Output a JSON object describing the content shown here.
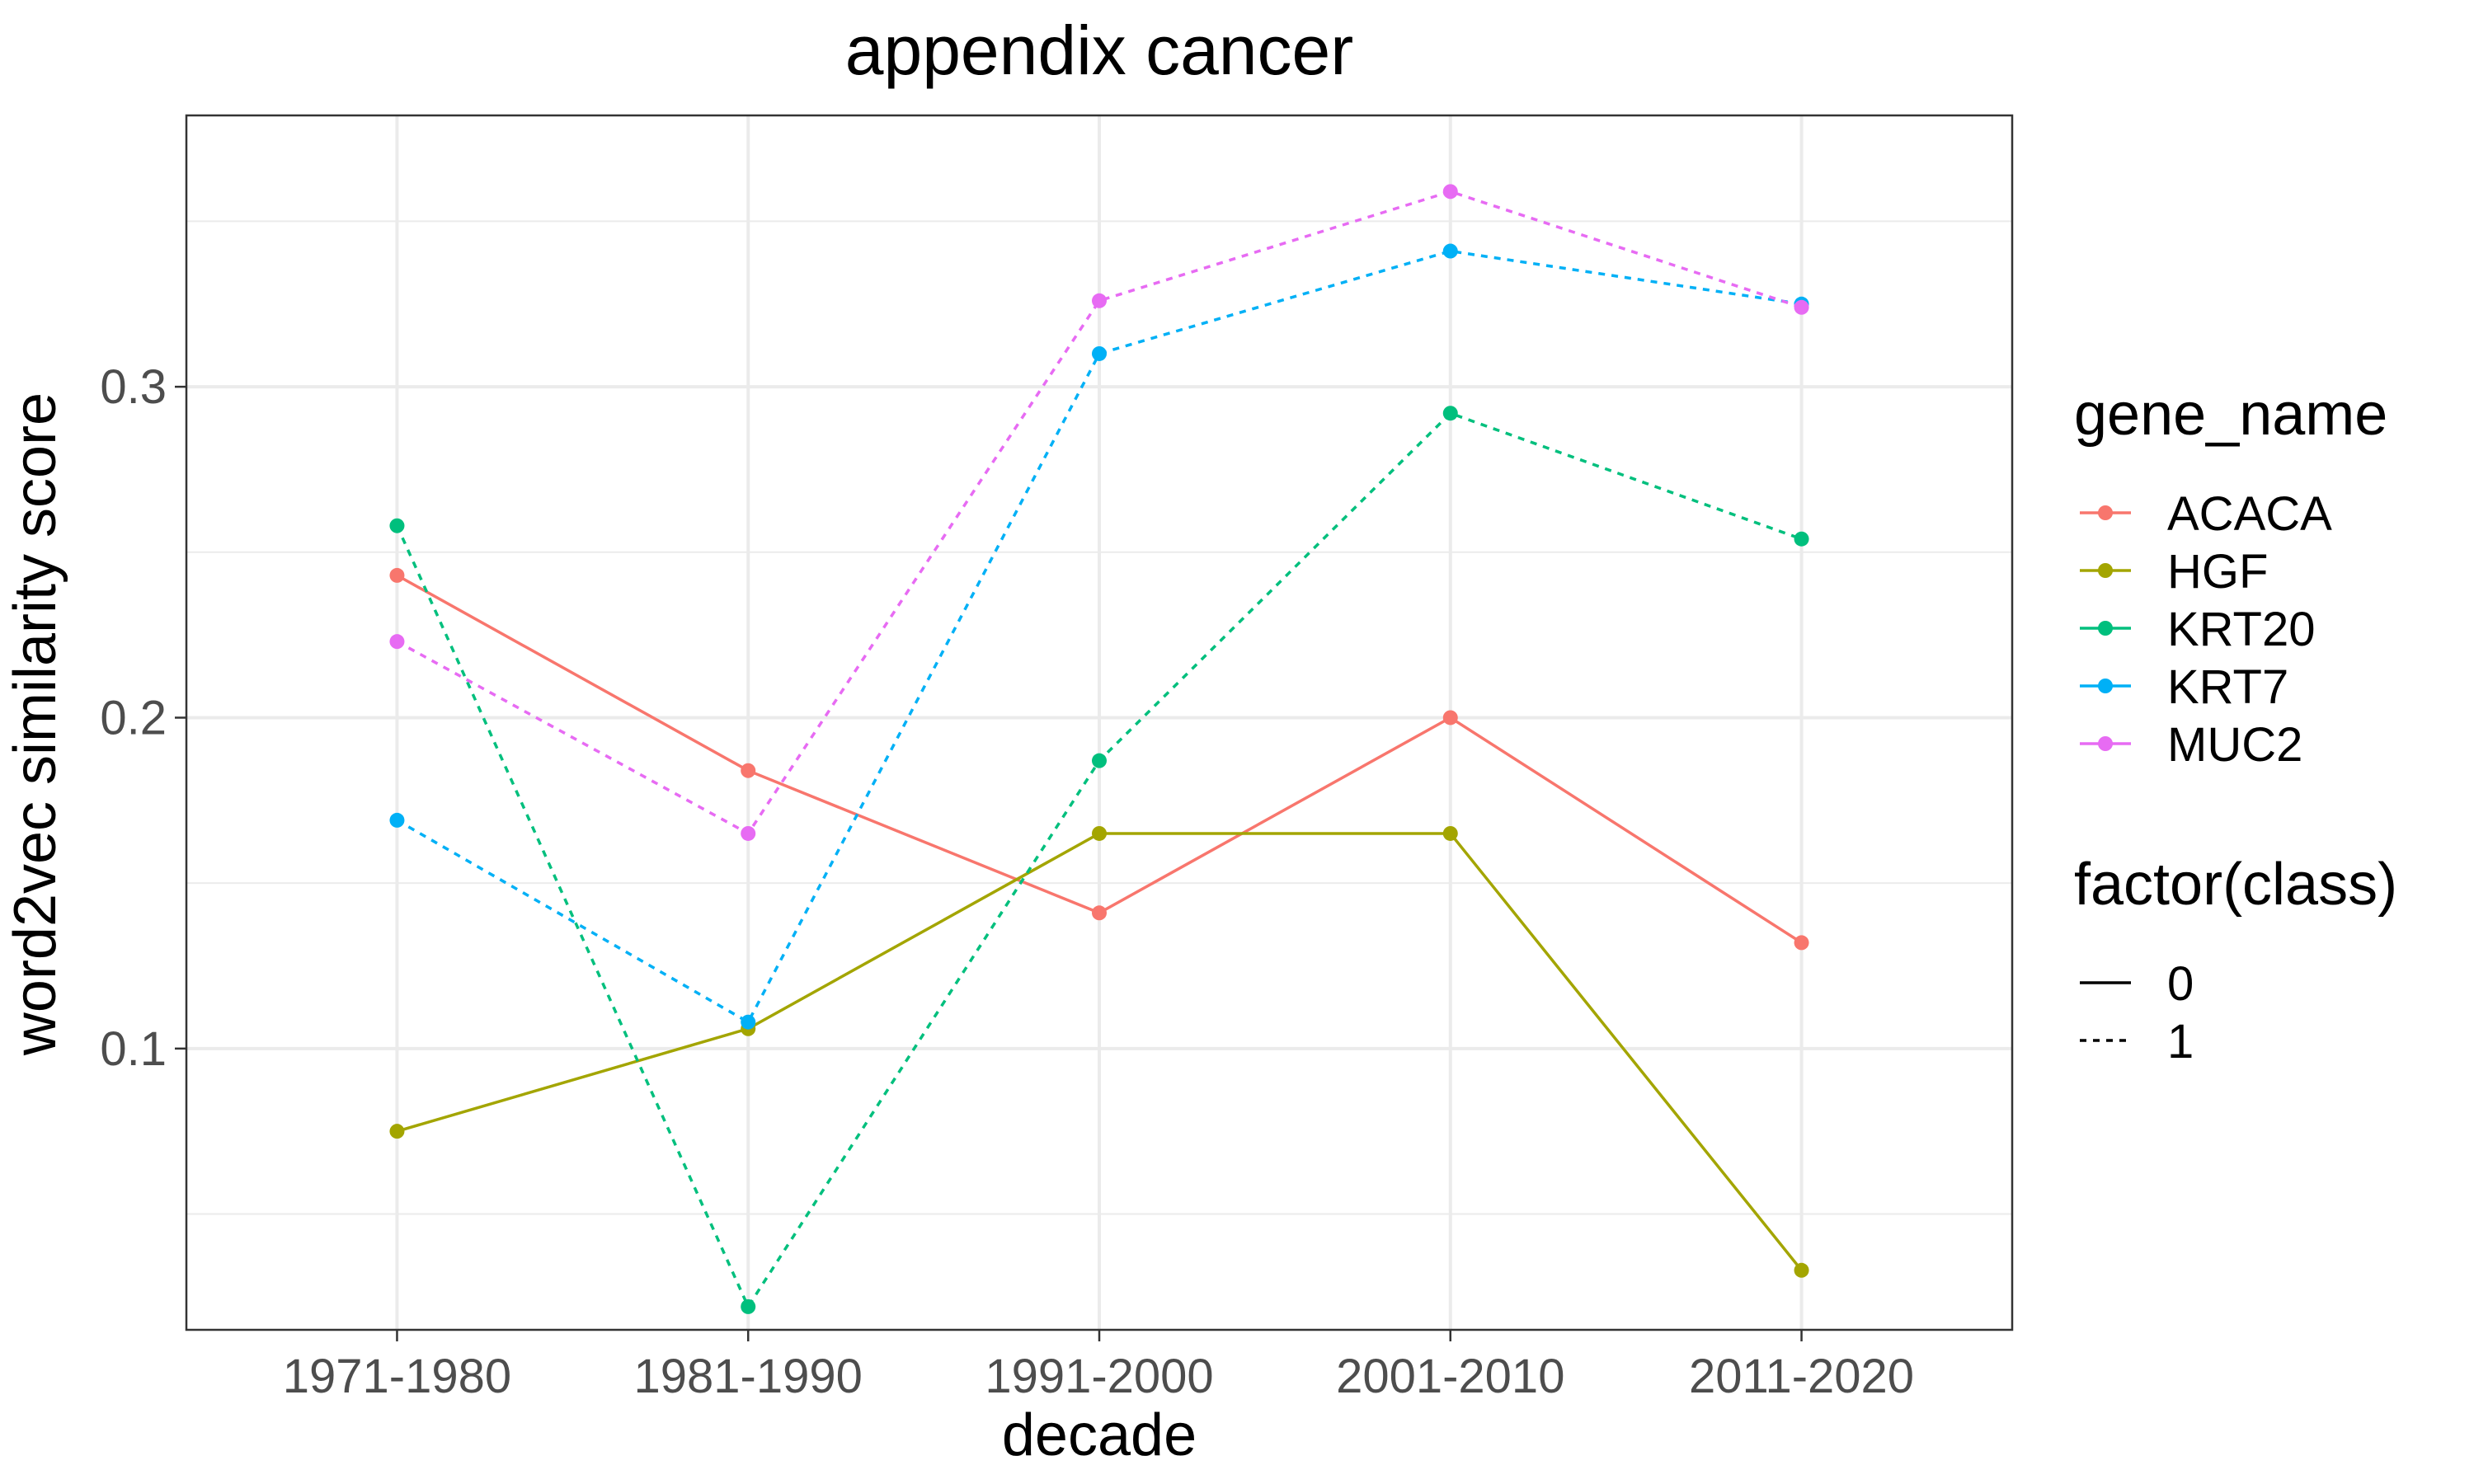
{
  "chart_data": {
    "type": "line",
    "title": "appendix cancer",
    "xlabel": "decade",
    "ylabel": "word2vec similarity score",
    "categories": [
      "1971-1980",
      "1981-1990",
      "1991-2000",
      "2001-2010",
      "2011-2020"
    ],
    "ylim": [
      0.015,
      0.382
    ],
    "y_ticks": [
      0.1,
      0.2,
      0.3
    ],
    "y_tick_labels": [
      "0.1",
      "0.2",
      "0.3"
    ],
    "grid": true,
    "legend_position": "right",
    "series": [
      {
        "name": "ACACA",
        "class": "0",
        "color": "#F8766D",
        "values": [
          0.243,
          0.184,
          0.141,
          0.2,
          0.132
        ]
      },
      {
        "name": "HGF",
        "class": "0",
        "color": "#A3A500",
        "values": [
          0.075,
          0.106,
          0.165,
          0.165,
          0.033
        ]
      },
      {
        "name": "KRT20",
        "class": "1",
        "color": "#00BF7D",
        "values": [
          0.258,
          0.022,
          0.187,
          0.292,
          0.254
        ]
      },
      {
        "name": "KRT7",
        "class": "1",
        "color": "#00B0F6",
        "values": [
          0.169,
          0.108,
          0.31,
          0.341,
          0.325
        ]
      },
      {
        "name": "MUC2",
        "class": "1",
        "color": "#E76BF3",
        "values": [
          0.223,
          0.165,
          0.326,
          0.359,
          0.324
        ]
      }
    ],
    "legends": {
      "color_title": "gene_name",
      "linetype_title": "factor(class)",
      "linetype_entries": [
        {
          "label": "0",
          "style": "solid"
        },
        {
          "label": "1",
          "style": "dotted"
        }
      ]
    }
  }
}
